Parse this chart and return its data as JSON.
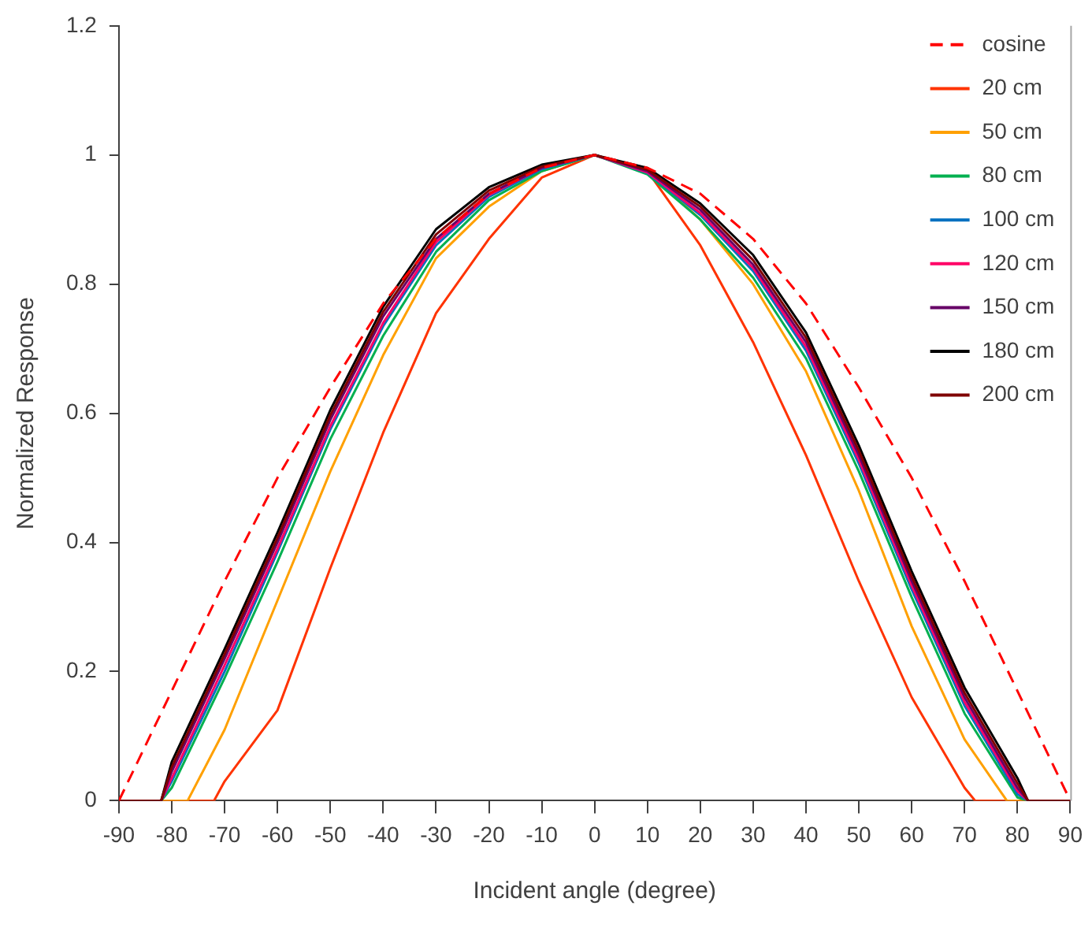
{
  "chart_data": {
    "type": "line",
    "xlabel": "Incident angle (degree)",
    "ylabel": "Normalized Response",
    "xlim": [
      -90,
      90
    ],
    "xticks": [
      -90,
      -80,
      -70,
      -60,
      -50,
      -40,
      -30,
      -20,
      -10,
      0,
      10,
      20,
      30,
      40,
      50,
      60,
      70,
      80,
      90
    ],
    "ylim": [
      0,
      1.2
    ],
    "yticks": [
      0,
      0.2,
      0.4,
      0.6,
      0.8,
      1,
      1.2
    ],
    "grid": false,
    "legend": "top right",
    "marker": "none",
    "series": [
      {
        "name": "cosine",
        "color": "#ff0000",
        "line_style": "dashed",
        "x": [
          -90,
          -80,
          -70,
          -60,
          -50,
          -40,
          -30,
          -20,
          -10,
          0,
          10,
          20,
          30,
          40,
          50,
          60,
          70,
          80,
          90
        ],
        "values": [
          0,
          0.17,
          0.34,
          0.5,
          0.64,
          0.77,
          0.87,
          0.94,
          0.98,
          1,
          0.98,
          0.94,
          0.87,
          0.77,
          0.64,
          0.5,
          0.34,
          0.17,
          0
        ]
      },
      {
        "name": "20 cm",
        "color": "#ff3300",
        "x": [
          -90,
          -72,
          -70,
          -60,
          -50,
          -40,
          -30,
          -20,
          -10,
          0,
          10,
          20,
          30,
          40,
          50,
          60,
          70,
          72,
          90
        ],
        "values": [
          0,
          0,
          0.03,
          0.14,
          0.36,
          0.57,
          0.755,
          0.87,
          0.965,
          1,
          0.975,
          0.86,
          0.71,
          0.535,
          0.34,
          0.16,
          0.02,
          0,
          0
        ]
      },
      {
        "name": "50 cm",
        "color": "#ffa000",
        "x": [
          -90,
          -77,
          -70,
          -60,
          -50,
          -40,
          -30,
          -20,
          -10,
          0,
          10,
          20,
          30,
          40,
          50,
          60,
          70,
          78,
          90
        ],
        "values": [
          0,
          0,
          0.11,
          0.31,
          0.51,
          0.69,
          0.84,
          0.92,
          0.975,
          1,
          0.975,
          0.9,
          0.8,
          0.665,
          0.48,
          0.27,
          0.095,
          0,
          0
        ]
      },
      {
        "name": "80 cm",
        "color": "#00b050",
        "x": [
          -90,
          -82,
          -80,
          -70,
          -60,
          -50,
          -40,
          -30,
          -20,
          -10,
          0,
          10,
          20,
          30,
          40,
          50,
          60,
          70,
          80,
          82,
          90
        ],
        "values": [
          0,
          0,
          0.02,
          0.19,
          0.37,
          0.56,
          0.72,
          0.85,
          0.93,
          0.975,
          1,
          0.97,
          0.9,
          0.81,
          0.685,
          0.51,
          0.315,
          0.135,
          0.005,
          0,
          0
        ]
      },
      {
        "name": "100 cm",
        "color": "#0070c0",
        "x": [
          -90,
          -82,
          -80,
          -70,
          -60,
          -50,
          -40,
          -30,
          -20,
          -10,
          0,
          10,
          20,
          30,
          40,
          50,
          60,
          70,
          80,
          82,
          90
        ],
        "values": [
          0,
          0,
          0.03,
          0.2,
          0.385,
          0.575,
          0.735,
          0.86,
          0.935,
          0.978,
          1,
          0.972,
          0.907,
          0.82,
          0.697,
          0.522,
          0.327,
          0.147,
          0.01,
          0,
          0
        ]
      },
      {
        "name": "120 cm",
        "color": "#ff0066",
        "x": [
          -90,
          -82,
          -80,
          -70,
          -60,
          -50,
          -40,
          -30,
          -20,
          -10,
          0,
          10,
          20,
          30,
          40,
          50,
          60,
          70,
          80,
          82,
          90
        ],
        "values": [
          0,
          0,
          0.035,
          0.21,
          0.39,
          0.58,
          0.74,
          0.865,
          0.938,
          0.98,
          1,
          0.973,
          0.91,
          0.825,
          0.703,
          0.528,
          0.333,
          0.153,
          0.015,
          0,
          0
        ]
      },
      {
        "name": "150 cm",
        "color": "#660066",
        "x": [
          -90,
          -82,
          -80,
          -70,
          -60,
          -50,
          -40,
          -30,
          -20,
          -10,
          0,
          10,
          20,
          30,
          40,
          50,
          60,
          70,
          80,
          82,
          90
        ],
        "values": [
          0,
          0,
          0.045,
          0.22,
          0.4,
          0.59,
          0.75,
          0.87,
          0.94,
          0.98,
          1,
          0.975,
          0.915,
          0.83,
          0.71,
          0.535,
          0.34,
          0.16,
          0.02,
          0,
          0
        ]
      },
      {
        "name": "180 cm",
        "color": "#000000",
        "x": [
          -90,
          -82,
          -80,
          -70,
          -60,
          -50,
          -40,
          -30,
          -20,
          -10,
          0,
          10,
          20,
          30,
          40,
          50,
          60,
          70,
          80,
          82,
          90
        ],
        "values": [
          0,
          0,
          0.06,
          0.235,
          0.415,
          0.605,
          0.765,
          0.885,
          0.95,
          0.985,
          1,
          0.98,
          0.925,
          0.845,
          0.725,
          0.55,
          0.355,
          0.175,
          0.035,
          0,
          0
        ]
      },
      {
        "name": "200 cm",
        "color": "#7f0000",
        "x": [
          -90,
          -82,
          -80,
          -70,
          -60,
          -50,
          -40,
          -30,
          -20,
          -10,
          0,
          10,
          20,
          30,
          40,
          50,
          60,
          70,
          80,
          82,
          90
        ],
        "values": [
          0,
          0,
          0.052,
          0.227,
          0.407,
          0.597,
          0.757,
          0.877,
          0.945,
          0.982,
          1,
          0.977,
          0.92,
          0.837,
          0.717,
          0.542,
          0.347,
          0.167,
          0.027,
          0,
          0
        ]
      }
    ]
  }
}
